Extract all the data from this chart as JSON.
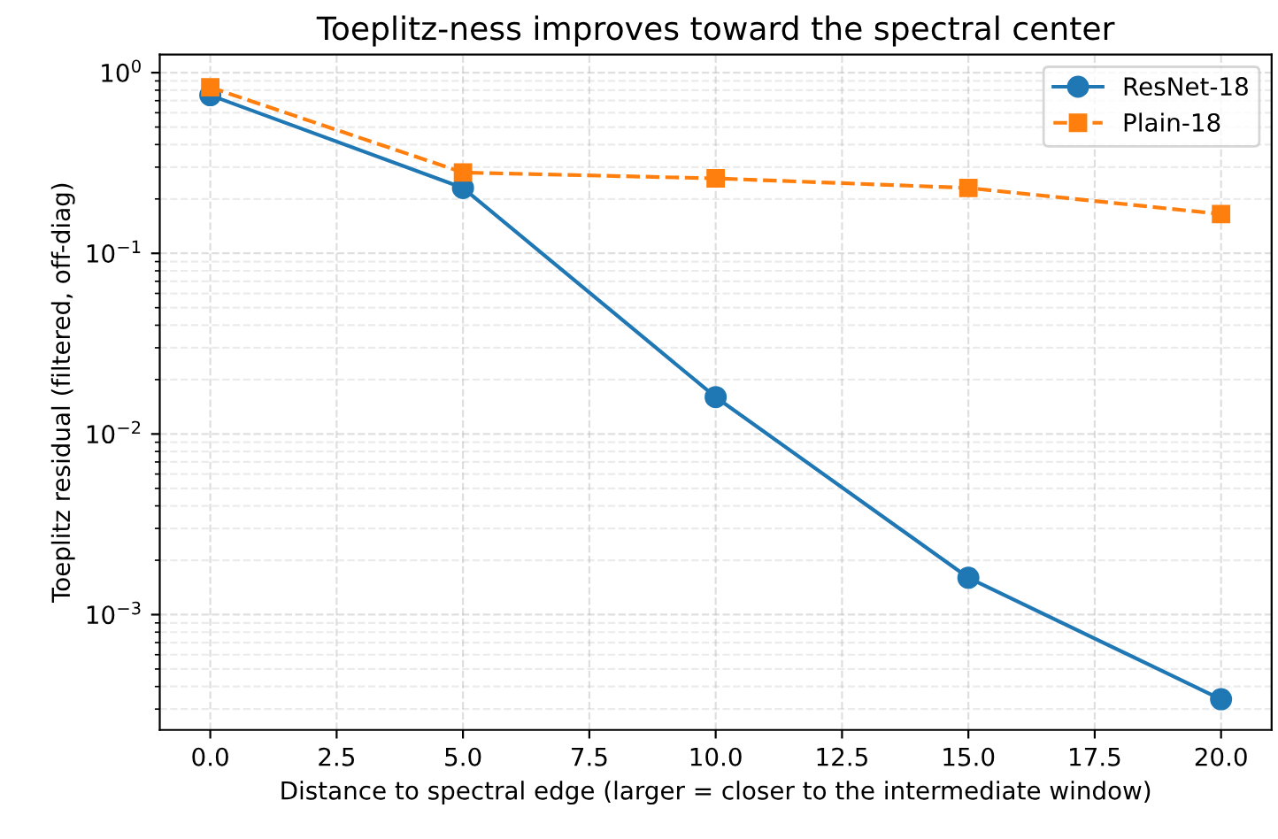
{
  "chart_data": {
    "type": "line",
    "title": "Toeplitz-ness improves toward the spectral center",
    "xlabel": "Distance to spectral edge (larger = closer to the intermediate window)",
    "ylabel": "Toeplitz residual (filtered, off-diag)",
    "x": [
      0,
      5,
      10,
      15,
      20
    ],
    "series": [
      {
        "name": "ResNet-18",
        "color": "#1f77b4",
        "values": [
          0.75,
          0.23,
          0.016,
          0.0016,
          0.00034
        ],
        "marker": "circle",
        "line_style": "solid"
      },
      {
        "name": "Plain-18",
        "color": "#ff7f0e",
        "values": [
          0.83,
          0.28,
          0.26,
          0.23,
          0.165
        ],
        "marker": "square",
        "line_style": "dashed"
      }
    ],
    "log": "y",
    "xlim": [
      -1,
      21
    ],
    "xticks": [
      {
        "value": 0,
        "label": "0.0"
      },
      {
        "value": 2.5,
        "label": "2.5"
      },
      {
        "value": 5,
        "label": "5.0"
      },
      {
        "value": 7.5,
        "label": "7.5"
      },
      {
        "value": 10,
        "label": "10.0"
      },
      {
        "value": 12.5,
        "label": "12.5"
      },
      {
        "value": 15,
        "label": "15.0"
      },
      {
        "value": 17.5,
        "label": "17.5"
      },
      {
        "value": 20,
        "label": "20.0"
      }
    ],
    "ylim": [
      0.00023,
      1.26
    ],
    "yticks": [
      {
        "value": 0.001,
        "label": "10$^{−3}$"
      },
      {
        "value": 0.01,
        "label": "10$^{−2}$"
      },
      {
        "value": 0.1,
        "label": "10$^{−1}$"
      },
      {
        "value": 1,
        "label": "10$^{0}$"
      }
    ],
    "grid": true,
    "legend": "top right"
  }
}
